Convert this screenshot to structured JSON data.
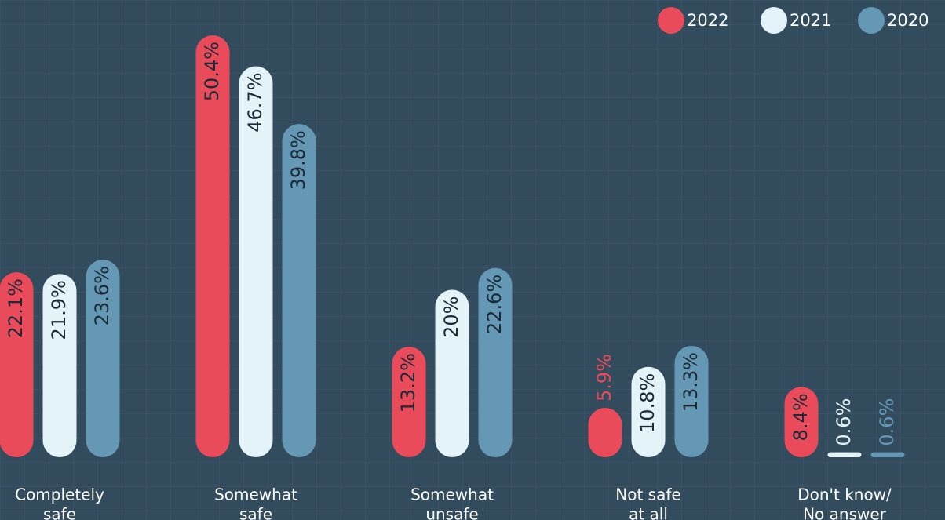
{
  "chart_data": {
    "type": "bar",
    "categories": [
      [
        "Completely",
        "safe"
      ],
      [
        "Somewhat",
        "safe"
      ],
      [
        "Somewhat",
        "unsafe"
      ],
      [
        "Not safe",
        "at all"
      ],
      [
        "Don't know/",
        "No answer"
      ]
    ],
    "series": [
      {
        "name": "2022",
        "color": "#e94b5a",
        "values": [
          22.1,
          50.4,
          13.2,
          5.9,
          8.4
        ],
        "value_labels": [
          "22.1%",
          "50.4%",
          "13.2%",
          "5.9%",
          "8.4%"
        ]
      },
      {
        "name": "2021",
        "color": "#e3f3f8",
        "values": [
          21.9,
          46.7,
          20,
          10.8,
          0.6
        ],
        "value_labels": [
          "21.9%",
          "46.7%",
          "20%",
          "10.8%",
          "0.6%"
        ]
      },
      {
        "name": "2020",
        "color": "#6498b5",
        "values": [
          23.6,
          39.8,
          22.6,
          13.3,
          0.6
        ],
        "value_labels": [
          "23.6%",
          "39.8%",
          "22.6%",
          "13.3%",
          "0.6%"
        ]
      }
    ],
    "ylim": [
      0,
      50.4
    ],
    "legend": "top-right"
  }
}
